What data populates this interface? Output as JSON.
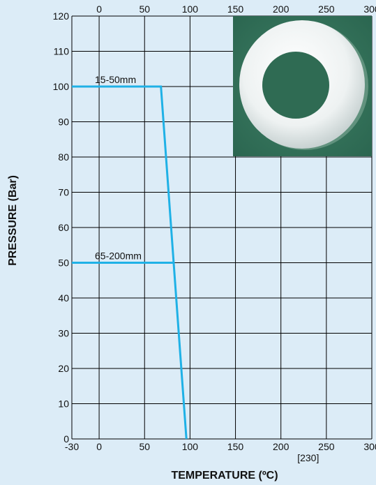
{
  "chart_data": {
    "type": "line",
    "title": "",
    "xlabel": "TEMPERATURE (ºC)",
    "ylabel": "PRESSURE (Bar)",
    "xlim": [
      -30,
      300
    ],
    "ylim": [
      0,
      120
    ],
    "grid": true,
    "x_ticks_bottom": [
      "-30",
      "0",
      "50",
      "100",
      "150",
      "200",
      "250",
      "300"
    ],
    "x_ticks_top": [
      "0",
      "50",
      "100",
      "150",
      "200",
      "250",
      "300"
    ],
    "x_tick_values": [
      -30,
      0,
      50,
      100,
      150,
      200,
      250,
      300
    ],
    "y_ticks": [
      "0",
      "10",
      "20",
      "30",
      "40",
      "50",
      "60",
      "70",
      "80",
      "90",
      "100",
      "110",
      "120"
    ],
    "y_tick_values": [
      0,
      10,
      20,
      30,
      40,
      50,
      60,
      70,
      80,
      90,
      100,
      110,
      120
    ],
    "extra_label": "[230]",
    "extra_label_x": 230,
    "line_color": "#1fb1e6",
    "grid_color": "#000000",
    "series": [
      {
        "name": "15-50mm",
        "points": [
          [
            -30,
            100
          ],
          [
            68,
            100
          ],
          [
            96,
            0
          ]
        ]
      },
      {
        "name": "65-200mm",
        "points": [
          [
            -30,
            50
          ],
          [
            82,
            50
          ]
        ]
      }
    ],
    "inset": "white-ring-gasket-photo"
  }
}
